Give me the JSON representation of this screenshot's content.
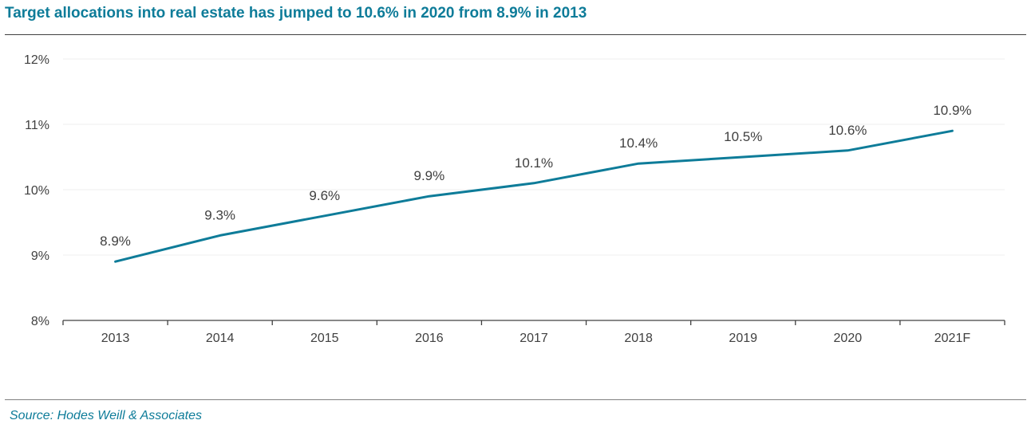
{
  "title": "Target allocations into real estate has jumped to 10.6% in 2020 from 8.9% in 2013",
  "source": "Source: Hodes Weill & Associates",
  "colors": {
    "title": "#0e7c99",
    "line": "#0e7c99",
    "text": "#404040",
    "grid": "#efefef",
    "axis": "#404040"
  },
  "chart_data": {
    "type": "line",
    "x": [
      "2013",
      "2014",
      "2015",
      "2016",
      "2017",
      "2018",
      "2019",
      "2020",
      "2021F"
    ],
    "series": [
      {
        "values": [
          8.9,
          9.3,
          9.6,
          9.9,
          10.1,
          10.4,
          10.5,
          10.6,
          10.9
        ],
        "labels": [
          "8.9%",
          "9.3%",
          "9.6%",
          "9.9%",
          "10.1%",
          "10.4%",
          "10.5%",
          "10.6%",
          "10.9%"
        ]
      }
    ],
    "ylim": [
      8,
      12
    ],
    "yticks": [
      8,
      9,
      10,
      11,
      12
    ],
    "ytick_labels": [
      "8%",
      "9%",
      "10%",
      "11%",
      "12%"
    ],
    "grid": true,
    "legend": "none"
  }
}
